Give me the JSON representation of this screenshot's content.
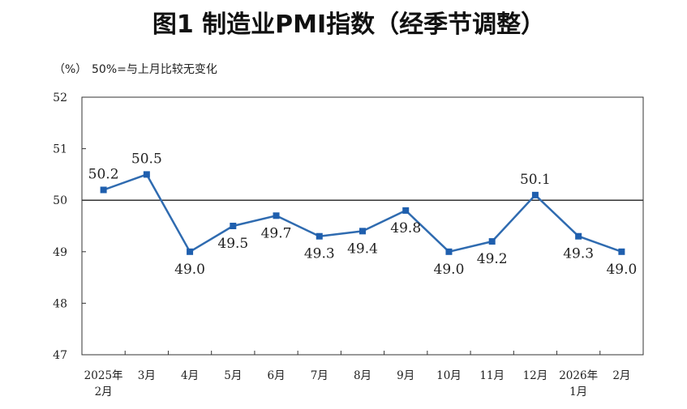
{
  "chart_data": {
    "type": "line",
    "title": "图1  制造业PMI指数（经季节调整）",
    "unit_label": "（%）",
    "note": "50%=与上月比较无变化",
    "categories": [
      [
        "2025年",
        "2月"
      ],
      [
        "3月"
      ],
      [
        "4月"
      ],
      [
        "5月"
      ],
      [
        "6月"
      ],
      [
        "7月"
      ],
      [
        "8月"
      ],
      [
        "9月"
      ],
      [
        "10月"
      ],
      [
        "11月"
      ],
      [
        "12月"
      ],
      [
        "2026年",
        "1月"
      ],
      [
        "2月"
      ]
    ],
    "series": [
      {
        "values": [
          50.2,
          50.5,
          49.0,
          49.5,
          49.7,
          49.3,
          49.4,
          49.8,
          49.0,
          49.2,
          50.1,
          49.3,
          49.0
        ],
        "data_labels": [
          "50.2",
          "50.5",
          "49.0",
          "49.5",
          "49.7",
          "49.3",
          "49.4",
          "49.8",
          "49.0",
          "49.2",
          "50.1",
          "49.3",
          "49.0"
        ],
        "label_positions": [
          "above",
          "above",
          "below",
          "below",
          "below",
          "below",
          "below",
          "below",
          "below",
          "below",
          "above",
          "below",
          "below"
        ]
      }
    ],
    "ylim": [
      47,
      52
    ],
    "yticks": [
      "47",
      "48",
      "49",
      "50",
      "51",
      "52"
    ],
    "reference_line": 50,
    "grid": false,
    "colors": {
      "series": "#2f6bb0",
      "marker": "#1f5fae",
      "axis": "#333333",
      "reference": "#333333"
    }
  }
}
